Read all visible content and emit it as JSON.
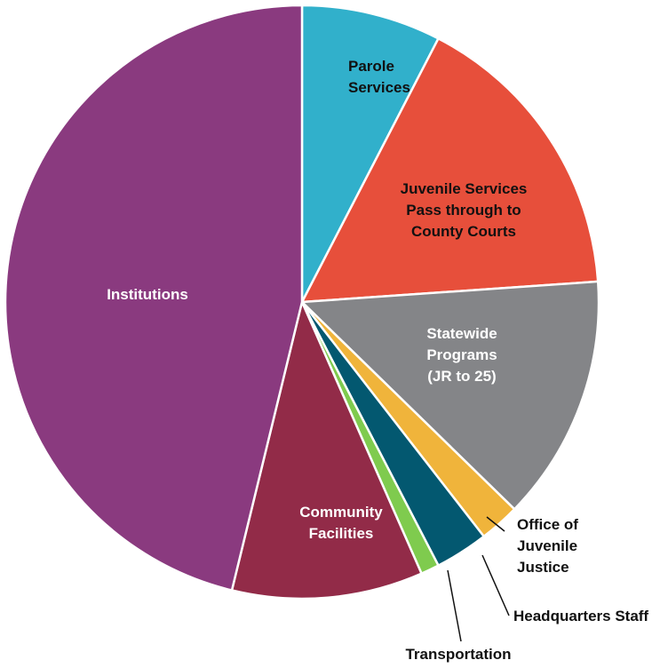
{
  "chart_data": {
    "type": "pie",
    "start": "12 o'clock",
    "direction": "clockwise",
    "slices": [
      {
        "label": "Parole Services",
        "lines": [
          "Parole",
          "Services"
        ],
        "value": 7.6,
        "color": "#31b0cb",
        "label_color": "#111111"
      },
      {
        "label": "Juvenile Services Pass through to County Courts",
        "lines": [
          "Juvenile Services",
          "Pass through to",
          "County Courts"
        ],
        "value": 16.3,
        "color": "#e74f3b",
        "label_color": "#111111"
      },
      {
        "label": "Statewide Programs (JR to 25)",
        "lines": [
          "Statewide",
          "Programs",
          "(JR to 25)"
        ],
        "value": 13.4,
        "color": "#848588",
        "label_color": "#ffffff"
      },
      {
        "label": "Office of Juvenile Justice",
        "lines": [
          "Office of",
          "Juvenile",
          "Justice"
        ],
        "value": 2.2,
        "color": "#f0b43b",
        "label_color": "#111111"
      },
      {
        "label": "Headquarters Staff",
        "lines": [
          "Headquarters Staff"
        ],
        "value": 2.9,
        "color": "#035870",
        "label_color": "#111111"
      },
      {
        "label": "Transportation",
        "lines": [
          "Transportation"
        ],
        "value": 1.0,
        "color": "#7fcb4e",
        "label_color": "#111111"
      },
      {
        "label": "Community Facilities",
        "lines": [
          "Community",
          "Facilities"
        ],
        "value": 10.4,
        "color": "#922b48",
        "label_color": "#ffffff"
      },
      {
        "label": "Institutions",
        "lines": [
          "Institutions"
        ],
        "value": 46.2,
        "color": "#8a3a7f",
        "label_color": "#ffffff"
      }
    ]
  }
}
